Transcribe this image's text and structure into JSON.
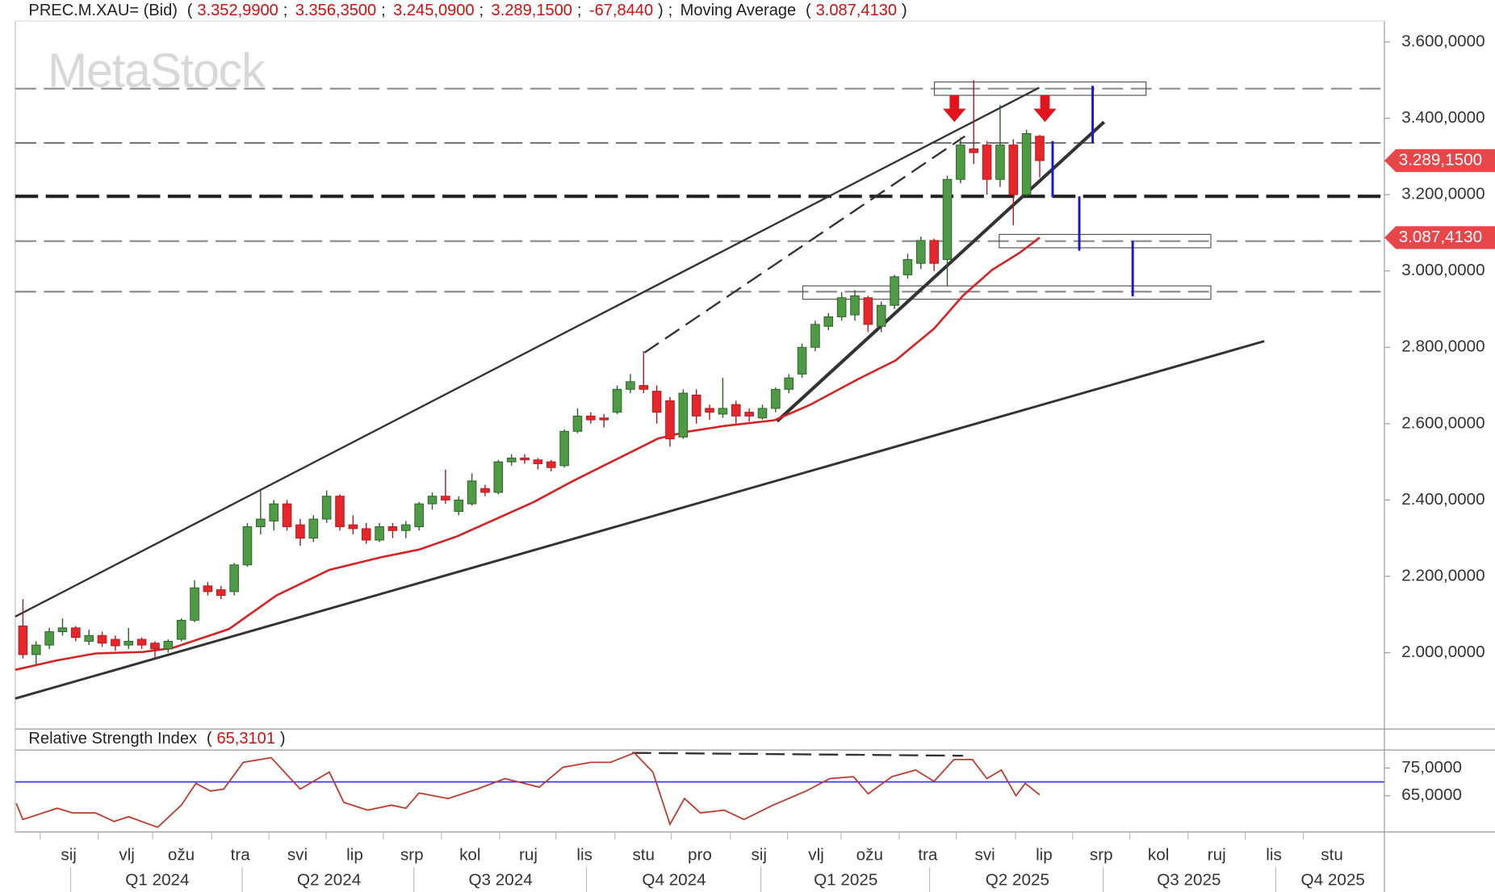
{
  "chart_data": {
    "type": "candlestick",
    "title": "PREC.M.XAU= (Bid)",
    "punctuation": {
      "open": "(",
      "sep": ";",
      "close": ")"
    },
    "header_values": [
      "3.352,9900",
      "3.356,3500",
      "3.245,0900",
      "3.289,1500",
      "-67,8440"
    ],
    "watermark": "MetaStock",
    "xlim": [
      -0.58,
      103.1
    ],
    "ylim": [
      1800,
      3655
    ],
    "yticks": [
      {
        "value": 2000,
        "label": "2.000,0000"
      },
      {
        "value": 2200,
        "label": "2.200,0000"
      },
      {
        "value": 2400,
        "label": "2.400,0000"
      },
      {
        "value": 2600,
        "label": "2.600,0000"
      },
      {
        "value": 2800,
        "label": "2.800,0000"
      },
      {
        "value": 3000,
        "label": "3.000,0000"
      },
      {
        "value": 3200,
        "label": "3.200,0000"
      },
      {
        "value": 3400,
        "label": "3.400,0000"
      },
      {
        "value": 3600,
        "label": "3.600,0000"
      }
    ],
    "xticks": [
      {
        "value": 3.47,
        "label": "sij"
      },
      {
        "value": 7.87,
        "label": "vlj"
      },
      {
        "value": 11.99,
        "label": "ožu"
      },
      {
        "value": 16.46,
        "label": "tra"
      },
      {
        "value": 20.79,
        "label": "svi"
      },
      {
        "value": 25.13,
        "label": "lip"
      },
      {
        "value": 29.46,
        "label": "srp"
      },
      {
        "value": 33.86,
        "label": "kol"
      },
      {
        "value": 38.27,
        "label": "ruj"
      },
      {
        "value": 42.53,
        "label": "lis"
      },
      {
        "value": 47.0,
        "label": "stu"
      },
      {
        "value": 51.26,
        "label": "pro"
      },
      {
        "value": 55.74,
        "label": "sij"
      },
      {
        "value": 60.07,
        "label": "vlj"
      },
      {
        "value": 64.12,
        "label": "ožu"
      },
      {
        "value": 68.52,
        "label": "tra"
      },
      {
        "value": 72.85,
        "label": "svi"
      },
      {
        "value": 77.33,
        "label": "lip"
      },
      {
        "value": 81.66,
        "label": "srp"
      },
      {
        "value": 85.99,
        "label": "kol"
      },
      {
        "value": 90.4,
        "label": "ruj"
      },
      {
        "value": 94.73,
        "label": "lis"
      },
      {
        "value": 99.13,
        "label": "stu"
      }
    ],
    "quarters": [
      {
        "value": 10.18,
        "label": "Q1 2024"
      },
      {
        "value": 23.18,
        "label": "Q2 2024"
      },
      {
        "value": 36.17,
        "label": "Q3 2024"
      },
      {
        "value": 49.31,
        "label": "Q4 2024"
      },
      {
        "value": 62.31,
        "label": "Q1 2025"
      },
      {
        "value": 75.31,
        "label": "Q2 2025"
      },
      {
        "value": 88.3,
        "label": "Q3 2025"
      },
      {
        "value": 99.2,
        "label": "Q4 2025"
      }
    ],
    "up_color": "#4f9a45",
    "down_color": "#e5262b",
    "open": [
      2070,
      1995,
      2020,
      2055,
      2065,
      2030,
      2045,
      2035,
      2020,
      2035,
      2025,
      2010,
      2035,
      2085,
      2175,
      2165,
      2160,
      2230,
      2330,
      2345,
      2390,
      2335,
      2300,
      2350,
      2410,
      2335,
      2325,
      2295,
      2330,
      2320,
      2330,
      2390,
      2410,
      2370,
      2390,
      2430,
      2420,
      2500,
      2510,
      2505,
      2500,
      2490,
      2580,
      2620,
      2615,
      2630,
      2690,
      2700,
      2685,
      2660,
      2565,
      2675,
      2640,
      2625,
      2650,
      2630,
      2615,
      2640,
      2690,
      2730,
      2800,
      2855,
      2880,
      2885,
      2930,
      2855,
      2910,
      2990,
      3020,
      3080,
      3030,
      3240,
      3320,
      3330,
      3240,
      3330,
      3200,
      3352.99
    ],
    "high": [
      2140,
      2030,
      2065,
      2090,
      2070,
      2060,
      2055,
      2045,
      2065,
      2040,
      2030,
      2035,
      2090,
      2190,
      2185,
      2175,
      2235,
      2340,
      2430,
      2400,
      2400,
      2350,
      2360,
      2425,
      2415,
      2360,
      2340,
      2340,
      2340,
      2345,
      2395,
      2420,
      2480,
      2410,
      2470,
      2440,
      2505,
      2520,
      2520,
      2510,
      2505,
      2585,
      2640,
      2630,
      2625,
      2700,
      2730,
      2790,
      2700,
      2670,
      2690,
      2690,
      2650,
      2720,
      2660,
      2640,
      2650,
      2695,
      2730,
      2810,
      2870,
      2890,
      2945,
      2950,
      2935,
      2920,
      2990,
      3045,
      3090,
      3085,
      3250,
      3350,
      3500,
      3340,
      3435,
      3345,
      3370,
      3356.35
    ],
    "low": [
      1985,
      1970,
      2010,
      2045,
      2030,
      2020,
      2015,
      2005,
      2010,
      2010,
      1985,
      2000,
      2030,
      2080,
      2150,
      2140,
      2150,
      2225,
      2310,
      2320,
      2320,
      2280,
      2290,
      2340,
      2320,
      2310,
      2285,
      2290,
      2300,
      2300,
      2320,
      2375,
      2390,
      2360,
      2385,
      2410,
      2415,
      2490,
      2495,
      2480,
      2475,
      2485,
      2575,
      2600,
      2590,
      2625,
      2680,
      2680,
      2600,
      2540,
      2560,
      2600,
      2610,
      2615,
      2600,
      2605,
      2610,
      2630,
      2680,
      2720,
      2790,
      2845,
      2870,
      2870,
      2840,
      2840,
      2900,
      2980,
      3005,
      3000,
      2960,
      3230,
      3280,
      3200,
      3220,
      3120,
      3195,
      3245.09
    ],
    "close": [
      1995,
      2020,
      2055,
      2065,
      2040,
      2045,
      2025,
      2018,
      2030,
      2020,
      2010,
      2030,
      2085,
      2170,
      2160,
      2150,
      2230,
      2330,
      2350,
      2390,
      2330,
      2300,
      2350,
      2410,
      2330,
      2325,
      2295,
      2330,
      2320,
      2335,
      2390,
      2410,
      2400,
      2400,
      2450,
      2420,
      2500,
      2510,
      2505,
      2495,
      2485,
      2580,
      2620,
      2610,
      2610,
      2690,
      2710,
      2690,
      2630,
      2560,
      2680,
      2620,
      2630,
      2640,
      2620,
      2620,
      2640,
      2690,
      2720,
      2800,
      2860,
      2880,
      2930,
      2935,
      2860,
      2910,
      2985,
      3030,
      3080,
      3020,
      3240,
      3330,
      3310,
      3240,
      3330,
      3200,
      3360,
      3289.15
    ],
    "ma": {
      "name": "Moving Average",
      "value_label": "3.087,4130",
      "color": "#d62222",
      "x": [
        -0.58,
        2.6,
        5.5,
        9.1,
        11.3,
        15.6,
        19.2,
        23.2,
        27.1,
        30,
        32.9,
        35.8,
        38.7,
        41.6,
        44.5,
        48.1,
        50.3,
        53.1,
        56.9,
        59.6,
        63.2,
        66.1,
        69,
        71.2,
        73.4,
        75.5,
        77
      ],
      "values": [
        1955,
        1980,
        1998,
        2002,
        2012,
        2062,
        2150,
        2217,
        2250,
        2270,
        2305,
        2350,
        2395,
        2449,
        2499,
        2561,
        2579,
        2594,
        2609,
        2649,
        2716,
        2766,
        2849,
        2936,
        3003,
        3048,
        3087.413
      ]
    },
    "rsi": {
      "name": "Relative Strength Index",
      "value_label": "65,3101",
      "color": "#c0392b",
      "level": 70,
      "level_color": "#3b3bdc",
      "ylim": [
        51.9,
        81.55
      ],
      "yticks": [
        {
          "value": 65,
          "label": "65,0000"
        },
        {
          "value": 75,
          "label": "75,0000"
        }
      ],
      "x": [
        -0.5,
        0,
        2.6,
        3.75,
        5.5,
        6.9,
        8,
        10.2,
        12,
        13.1,
        14.2,
        15.2,
        16.7,
        18.8,
        21,
        23.2,
        24.3,
        26.1,
        27.9,
        29,
        30,
        32.2,
        34.4,
        36.5,
        39.1,
        40.9,
        43,
        44.5,
        46.3,
        47.7,
        49,
        50.1,
        51.3,
        53.1,
        54.6,
        56.8,
        59.3,
        61.1,
        62.9,
        64,
        65.8,
        67.6,
        69,
        70.5,
        71.9,
        73,
        74.1,
        75.2,
        75.9,
        77
      ],
      "values": [
        62.2,
        56.4,
        60.5,
        58.8,
        58.8,
        55.7,
        57.4,
        53.6,
        61.6,
        69.5,
        66.7,
        67.4,
        77.1,
        78.8,
        67.4,
        73.6,
        62.6,
        59.8,
        61.6,
        60.5,
        66,
        64,
        67.4,
        71.2,
        68.1,
        75.3,
        77.1,
        77.1,
        80.5,
        73.6,
        54.7,
        64,
        58.8,
        59.8,
        56.4,
        61.6,
        66.7,
        71.2,
        71.9,
        65.7,
        71.9,
        74.3,
        70.2,
        78.1,
        78.1,
        71.2,
        74.3,
        65,
        69.5,
        65.3101
      ]
    }
  }
}
